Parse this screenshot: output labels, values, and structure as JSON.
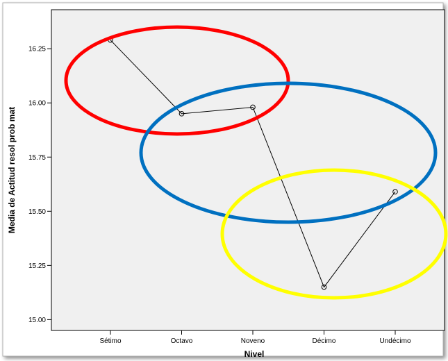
{
  "chart_data": {
    "type": "line",
    "xlabel": "Nivel",
    "ylabel": "Media de Actitud resol prob mat",
    "categories": [
      "Sétimo",
      "Octavo",
      "Noveno",
      "Décimo",
      "Undécimo"
    ],
    "values": [
      16.29,
      15.95,
      15.98,
      15.15,
      15.59
    ],
    "ylim": [
      14.95,
      16.43
    ],
    "yticks": [
      15.0,
      15.25,
      15.5,
      15.75,
      16.0,
      16.25
    ],
    "ytick_labels": [
      "15.00",
      "15.25",
      "15.50",
      "15.75",
      "16.00",
      "16.25"
    ],
    "grid": false,
    "plot_background": "#f0f0f0",
    "line_color": "#000000",
    "marker": "open-circle",
    "annotations": [
      {
        "type": "ellipse",
        "color": "#ff0000",
        "encloses": [
          "Sétimo",
          "Octavo"
        ]
      },
      {
        "type": "ellipse",
        "color": "#0070c0",
        "encloses": [
          "Octavo",
          "Noveno"
        ]
      },
      {
        "type": "ellipse",
        "color": "#ffff00",
        "encloses": [
          "Décimo",
          "Undécimo"
        ]
      }
    ]
  }
}
